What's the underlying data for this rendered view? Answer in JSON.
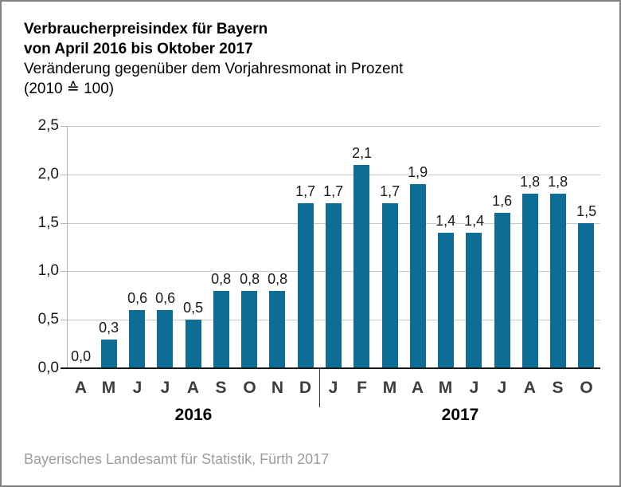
{
  "title": {
    "line1": "Verbraucherpreisindex für Bayern",
    "line2": "von April 2016 bis Oktober 2017",
    "subtitle": "Veränderung gegenüber dem Vorjahresmonat in Prozent",
    "base_note": "(2010 ≙ 100)"
  },
  "footer": {
    "source": "Bayerisches Landesamt für Statistik, Fürth 2017"
  },
  "chart_data": {
    "type": "bar",
    "title": "Verbraucherpreisindex für Bayern von April 2016 bis Oktober 2017",
    "subtitle": "Veränderung gegenüber dem Vorjahresmonat in Prozent (2010 ≙ 100)",
    "xlabel": "",
    "ylabel": "Prozent",
    "ylim": [
      0,
      2.5
    ],
    "ytick_step": 0.5,
    "ytick_labels": [
      "0,0",
      "0,5",
      "1,0",
      "1,5",
      "2,0",
      "2,5"
    ],
    "grid": true,
    "categories": [
      "A",
      "M",
      "J",
      "J",
      "A",
      "S",
      "O",
      "N",
      "D",
      "J",
      "F",
      "M",
      "A",
      "M",
      "J",
      "J",
      "A",
      "S",
      "O"
    ],
    "year_groups": [
      {
        "label": "2016",
        "span": 9
      },
      {
        "label": "2017",
        "span": 10
      }
    ],
    "values": [
      0.0,
      0.3,
      0.6,
      0.6,
      0.5,
      0.8,
      0.8,
      0.8,
      1.7,
      1.7,
      2.1,
      1.7,
      1.9,
      1.4,
      1.4,
      1.6,
      1.8,
      1.8,
      1.5
    ],
    "value_labels": [
      "0,0",
      "0,3",
      "0,6",
      "0,6",
      "0,5",
      "0,8",
      "0,8",
      "0,8",
      "1,7",
      "1,7",
      "2,1",
      "1,7",
      "1,9",
      "1,4",
      "1,4",
      "1,6",
      "1,8",
      "1,8",
      "1,5"
    ],
    "bar_color": "#0e6d94"
  },
  "colors": {
    "bar": "#0e6d94",
    "gridline": "#c9c9c9",
    "axis": "#b3b3b3",
    "baseline": "#1a1a1a",
    "frame_border": "#828282",
    "footer_text": "#9c9c9c"
  }
}
